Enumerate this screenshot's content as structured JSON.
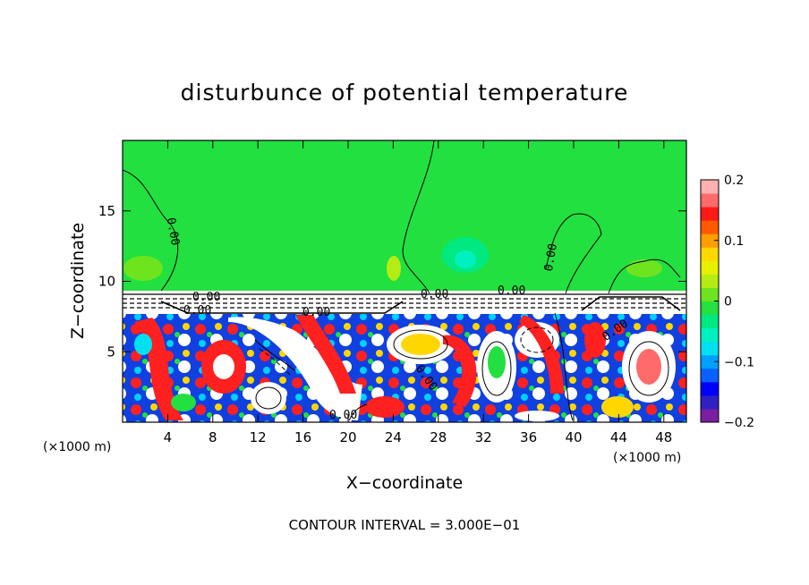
{
  "chart_data": {
    "type": "heatmap",
    "title": "disturbunce of potential temperature",
    "xlabel": "X−coordinate",
    "ylabel": "Z−coordinate",
    "x_unit": "(×1000 m)",
    "z_unit": "(×1000 m)",
    "xlim": [
      0,
      50
    ],
    "ylim": [
      0,
      20
    ],
    "x_ticks": [
      4,
      8,
      12,
      16,
      20,
      24,
      28,
      32,
      36,
      40,
      44,
      48
    ],
    "x_tick_labels": [
      "4",
      "8",
      "12",
      "16",
      "20",
      "24",
      "28",
      "32",
      "36",
      "40",
      "44",
      "48"
    ],
    "y_ticks": [
      5,
      10,
      15
    ],
    "y_tick_labels": [
      "5",
      "10",
      "15"
    ],
    "contour_interval_text": "CONTOUR INTERVAL = 3.000E−01",
    "contour_labels": [
      "0.00",
      "0.00",
      "0.00",
      "0.00",
      "0.00",
      "0.00",
      "0.00",
      "0.00",
      "0.00",
      "0.00"
    ],
    "colorbar": {
      "range": [
        -0.2,
        0.2
      ],
      "ticks": [
        0.2,
        0.1,
        0,
        -0.1,
        -0.2
      ],
      "tick_labels": [
        "0.2",
        "0.1",
        "0",
        "−0.1",
        "−0.2"
      ],
      "colors": [
        "#7a1fa2",
        "#3020c0",
        "#0000ff",
        "#0a60ff",
        "#00a0ff",
        "#00e0f0",
        "#00f0c0",
        "#00e880",
        "#24e040",
        "#6ee41e",
        "#b4ec14",
        "#e6f000",
        "#ffd700",
        "#ff9e00",
        "#ff5a00",
        "#ff1a1a",
        "#ff6a6a",
        "#ffb0b0"
      ]
    },
    "background_color": "#22e040"
  }
}
